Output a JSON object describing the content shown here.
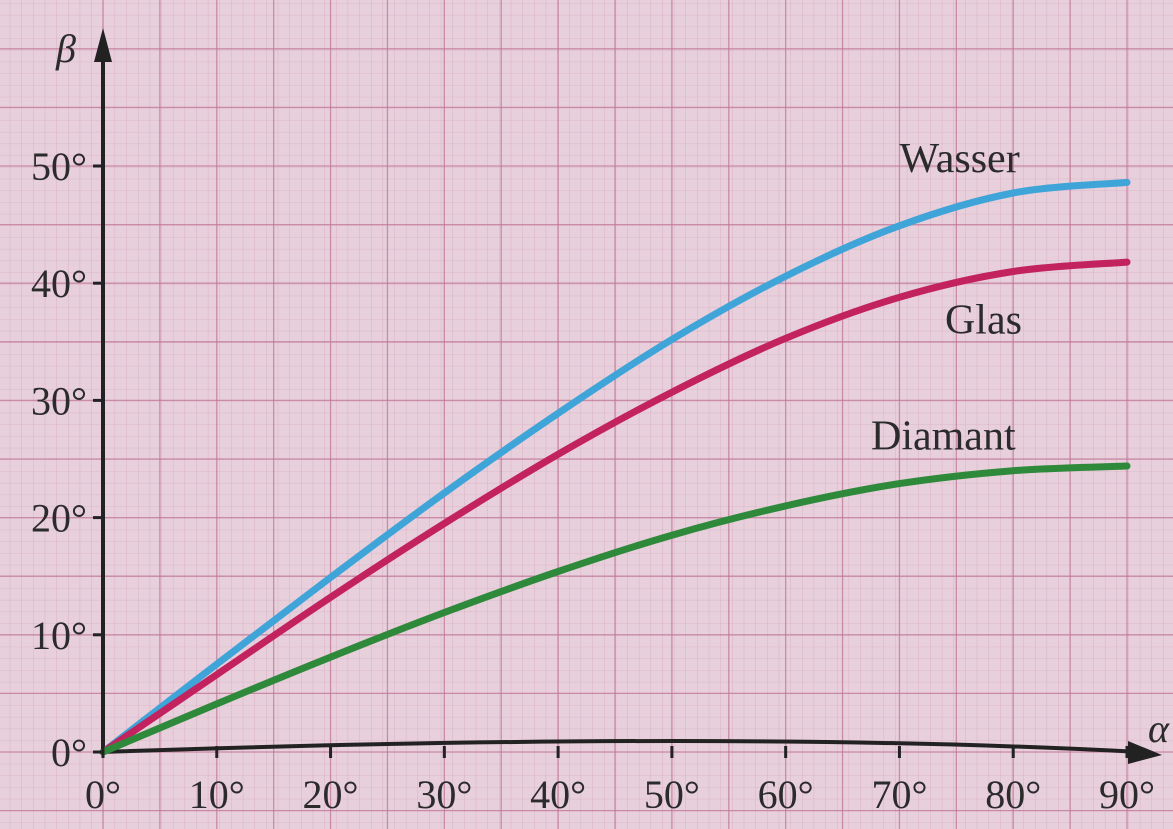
{
  "chart_data": {
    "type": "line",
    "title": "",
    "xlabel": "α",
    "ylabel": "β",
    "xlim": [
      0,
      90
    ],
    "ylim": [
      0,
      50
    ],
    "grid": true,
    "x_ticks": [
      0,
      10,
      20,
      30,
      40,
      50,
      60,
      70,
      80,
      90
    ],
    "x_tick_labels": [
      "0°",
      "10°",
      "20°",
      "30°",
      "40°",
      "50°",
      "60°",
      "70°",
      "80°",
      "90°"
    ],
    "y_ticks": [
      0,
      10,
      20,
      30,
      40,
      50
    ],
    "y_tick_labels": [
      "0°",
      "10°",
      "20°",
      "30°",
      "40°",
      "50°"
    ],
    "series": [
      {
        "name": "Wasser",
        "color": "#3fa4d8",
        "x": [
          0,
          10,
          20,
          30,
          40,
          50,
          60,
          70,
          80,
          90
        ],
        "y": [
          0,
          7.5,
          14.9,
          22.1,
          28.9,
          35.2,
          40.6,
          44.9,
          47.7,
          48.6
        ]
      },
      {
        "name": "Glas",
        "color": "#c2225e",
        "x": [
          0,
          10,
          20,
          30,
          40,
          50,
          60,
          70,
          80,
          90
        ],
        "y": [
          0,
          6.6,
          13.2,
          19.5,
          25.4,
          30.7,
          35.3,
          38.8,
          41.0,
          41.8
        ]
      },
      {
        "name": "Diamant",
        "color": "#2e8a3a",
        "x": [
          0,
          10,
          20,
          30,
          40,
          50,
          60,
          70,
          80,
          90
        ],
        "y": [
          0,
          4.1,
          8.1,
          11.9,
          15.4,
          18.5,
          21.0,
          22.9,
          24.0,
          24.4
        ]
      }
    ]
  }
}
